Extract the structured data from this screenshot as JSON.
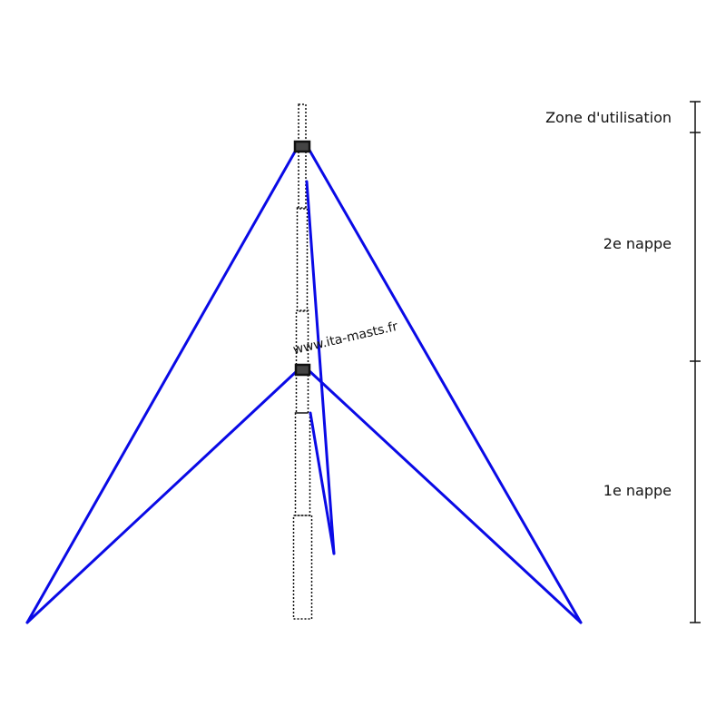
{
  "labels": {
    "zone": "Zone d'utilisation",
    "second": "2e nappe",
    "first": "1e nappe"
  },
  "watermark": "www.ita-masts.fr",
  "colors": {
    "guy_wire": "#0a0ae6",
    "mast_outline": "#111111",
    "anchor_block": "#222222"
  }
}
